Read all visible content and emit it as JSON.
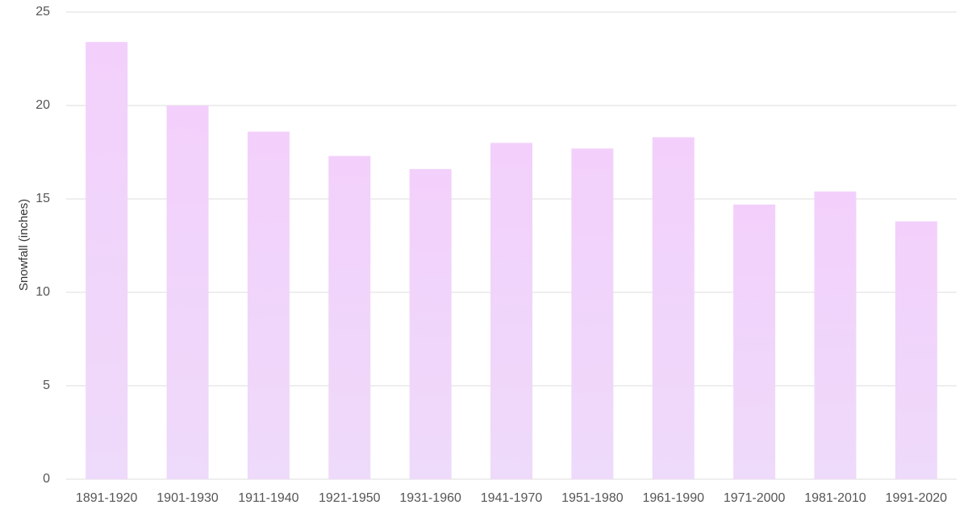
{
  "chart_data": {
    "type": "bar",
    "categories": [
      "1891-1920",
      "1901-1930",
      "1911-1940",
      "1921-1950",
      "1931-1960",
      "1941-1970",
      "1951-1980",
      "1961-1990",
      "1971-2000",
      "1981-2010",
      "1991-2020"
    ],
    "values": [
      23.4,
      20.0,
      18.6,
      17.3,
      16.6,
      18.0,
      17.7,
      18.3,
      14.7,
      15.4,
      13.8
    ],
    "title": "",
    "xlabel": "",
    "ylabel": "Snowfall (inches)",
    "ylim": [
      0,
      25
    ],
    "yticks": [
      0,
      5,
      10,
      15,
      20,
      25
    ],
    "grid": true,
    "legend": "none",
    "bar_color": "#f0d4f8",
    "grid_color": "#dddddd"
  }
}
